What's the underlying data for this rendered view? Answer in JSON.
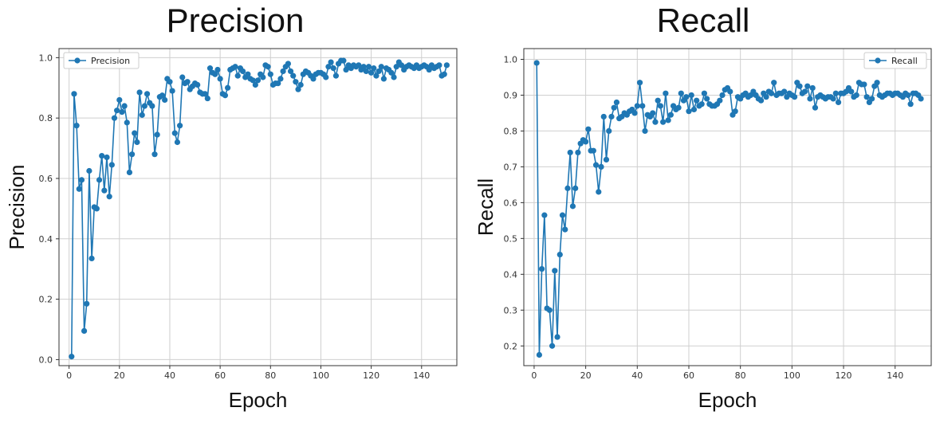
{
  "chart_data": [
    {
      "type": "line",
      "title": "Precision",
      "xlabel": "Epoch",
      "ylabel": "Precision",
      "xlim": [
        -4,
        154
      ],
      "ylim": [
        -0.02,
        1.03
      ],
      "xticks": [
        0,
        20,
        40,
        60,
        80,
        100,
        120,
        140
      ],
      "xtick_labels": [
        "0",
        "20",
        "40",
        "60",
        "80",
        "100",
        "120",
        "140"
      ],
      "yticks": [
        0.0,
        0.2,
        0.4,
        0.6,
        0.8,
        1.0
      ],
      "ytick_labels": [
        "0.0",
        "0.2",
        "0.4",
        "0.6",
        "0.8",
        "1.0"
      ],
      "grid": true,
      "legend": "top-left",
      "color": "#1f77b4",
      "series": [
        {
          "name": "Precision",
          "x": [
            1,
            2,
            3,
            4,
            5,
            6,
            7,
            8,
            9,
            10,
            11,
            12,
            13,
            14,
            15,
            16,
            17,
            18,
            19,
            20,
            21,
            22,
            23,
            24,
            25,
            26,
            27,
            28,
            29,
            30,
            31,
            32,
            33,
            34,
            35,
            36,
            37,
            38,
            39,
            40,
            41,
            42,
            43,
            44,
            45,
            46,
            47,
            48,
            49,
            50,
            51,
            52,
            53,
            54,
            55,
            56,
            57,
            58,
            59,
            60,
            61,
            62,
            63,
            64,
            65,
            66,
            67,
            68,
            69,
            70,
            71,
            72,
            73,
            74,
            75,
            76,
            77,
            78,
            79,
            80,
            81,
            82,
            83,
            84,
            85,
            86,
            87,
            88,
            89,
            90,
            91,
            92,
            93,
            94,
            95,
            96,
            97,
            98,
            99,
            100,
            101,
            102,
            103,
            104,
            105,
            106,
            107,
            108,
            109,
            110,
            111,
            112,
            113,
            114,
            115,
            116,
            117,
            118,
            119,
            120,
            121,
            122,
            123,
            124,
            125,
            126,
            127,
            128,
            129,
            130,
            131,
            132,
            133,
            134,
            135,
            136,
            137,
            138,
            139,
            140,
            141,
            142,
            143,
            144,
            145,
            146,
            147,
            148,
            149,
            150
          ],
          "y": [
            0.01,
            0.88,
            0.775,
            0.565,
            0.595,
            0.095,
            0.185,
            0.625,
            0.335,
            0.505,
            0.5,
            0.595,
            0.675,
            0.56,
            0.67,
            0.54,
            0.645,
            0.8,
            0.825,
            0.86,
            0.82,
            0.84,
            0.785,
            0.62,
            0.68,
            0.75,
            0.72,
            0.885,
            0.81,
            0.84,
            0.88,
            0.85,
            0.84,
            0.68,
            0.745,
            0.87,
            0.875,
            0.86,
            0.93,
            0.92,
            0.89,
            0.75,
            0.72,
            0.775,
            0.935,
            0.915,
            0.92,
            0.895,
            0.905,
            0.915,
            0.91,
            0.885,
            0.88,
            0.88,
            0.865,
            0.965,
            0.95,
            0.945,
            0.96,
            0.93,
            0.88,
            0.875,
            0.9,
            0.96,
            0.965,
            0.97,
            0.94,
            0.965,
            0.955,
            0.935,
            0.945,
            0.93,
            0.925,
            0.91,
            0.925,
            0.945,
            0.935,
            0.975,
            0.97,
            0.945,
            0.91,
            0.915,
            0.915,
            0.93,
            0.955,
            0.97,
            0.98,
            0.955,
            0.94,
            0.92,
            0.895,
            0.91,
            0.945,
            0.955,
            0.95,
            0.94,
            0.93,
            0.945,
            0.95,
            0.95,
            0.945,
            0.935,
            0.97,
            0.985,
            0.965,
            0.94,
            0.98,
            0.99,
            0.99,
            0.96,
            0.975,
            0.965,
            0.975,
            0.97,
            0.975,
            0.96,
            0.97,
            0.955,
            0.97,
            0.95,
            0.965,
            0.94,
            0.955,
            0.97,
            0.93,
            0.965,
            0.96,
            0.95,
            0.935,
            0.97,
            0.985,
            0.975,
            0.96,
            0.97,
            0.975,
            0.97,
            0.965,
            0.975,
            0.965,
            0.97,
            0.975,
            0.97,
            0.96,
            0.975,
            0.965,
            0.97,
            0.975,
            0.94,
            0.945,
            0.975
          ]
        }
      ]
    },
    {
      "type": "line",
      "title": "Recall",
      "xlabel": "Epoch",
      "ylabel": "Recall",
      "xlim": [
        -4,
        154
      ],
      "ylim": [
        0.145,
        1.03
      ],
      "xticks": [
        0,
        20,
        40,
        60,
        80,
        100,
        120,
        140
      ],
      "xtick_labels": [
        "0",
        "20",
        "40",
        "60",
        "80",
        "100",
        "120",
        "140"
      ],
      "yticks": [
        0.2,
        0.3,
        0.4,
        0.5,
        0.6,
        0.7,
        0.8,
        0.9,
        1.0
      ],
      "ytick_labels": [
        "0.2",
        "0.3",
        "0.4",
        "0.5",
        "0.6",
        "0.7",
        "0.8",
        "0.9",
        "1.0"
      ],
      "grid": true,
      "legend": "top-right",
      "color": "#1f77b4",
      "series": [
        {
          "name": "Recall",
          "x": [
            1,
            2,
            3,
            4,
            5,
            6,
            7,
            8,
            9,
            10,
            11,
            12,
            13,
            14,
            15,
            16,
            17,
            18,
            19,
            20,
            21,
            22,
            23,
            24,
            25,
            26,
            27,
            28,
            29,
            30,
            31,
            32,
            33,
            34,
            35,
            36,
            37,
            38,
            39,
            40,
            41,
            42,
            43,
            44,
            45,
            46,
            47,
            48,
            49,
            50,
            51,
            52,
            53,
            54,
            55,
            56,
            57,
            58,
            59,
            60,
            61,
            62,
            63,
            64,
            65,
            66,
            67,
            68,
            69,
            70,
            71,
            72,
            73,
            74,
            75,
            76,
            77,
            78,
            79,
            80,
            81,
            82,
            83,
            84,
            85,
            86,
            87,
            88,
            89,
            90,
            91,
            92,
            93,
            94,
            95,
            96,
            97,
            98,
            99,
            100,
            101,
            102,
            103,
            104,
            105,
            106,
            107,
            108,
            109,
            110,
            111,
            112,
            113,
            114,
            115,
            116,
            117,
            118,
            119,
            120,
            121,
            122,
            123,
            124,
            125,
            126,
            127,
            128,
            129,
            130,
            131,
            132,
            133,
            134,
            135,
            136,
            137,
            138,
            139,
            140,
            141,
            142,
            143,
            144,
            145,
            146,
            147,
            148,
            149,
            150
          ],
          "y": [
            0.99,
            0.175,
            0.415,
            0.565,
            0.305,
            0.3,
            0.2,
            0.41,
            0.225,
            0.455,
            0.565,
            0.525,
            0.64,
            0.74,
            0.59,
            0.64,
            0.74,
            0.765,
            0.775,
            0.77,
            0.805,
            0.745,
            0.745,
            0.705,
            0.63,
            0.7,
            0.84,
            0.72,
            0.8,
            0.84,
            0.865,
            0.88,
            0.835,
            0.84,
            0.85,
            0.845,
            0.855,
            0.86,
            0.85,
            0.87,
            0.935,
            0.87,
            0.8,
            0.845,
            0.84,
            0.85,
            0.825,
            0.885,
            0.87,
            0.825,
            0.905,
            0.83,
            0.845,
            0.87,
            0.86,
            0.865,
            0.905,
            0.885,
            0.895,
            0.855,
            0.9,
            0.86,
            0.885,
            0.87,
            0.875,
            0.905,
            0.89,
            0.875,
            0.87,
            0.87,
            0.875,
            0.885,
            0.9,
            0.915,
            0.92,
            0.91,
            0.845,
            0.855,
            0.895,
            0.89,
            0.9,
            0.905,
            0.895,
            0.9,
            0.91,
            0.9,
            0.89,
            0.885,
            0.905,
            0.895,
            0.91,
            0.905,
            0.935,
            0.9,
            0.905,
            0.905,
            0.91,
            0.895,
            0.905,
            0.9,
            0.895,
            0.935,
            0.925,
            0.905,
            0.91,
            0.925,
            0.89,
            0.92,
            0.865,
            0.895,
            0.9,
            0.895,
            0.89,
            0.895,
            0.895,
            0.89,
            0.905,
            0.88,
            0.905,
            0.905,
            0.91,
            0.92,
            0.91,
            0.895,
            0.9,
            0.935,
            0.93,
            0.93,
            0.895,
            0.88,
            0.89,
            0.925,
            0.935,
            0.9,
            0.895,
            0.9,
            0.905,
            0.905,
            0.9,
            0.905,
            0.905,
            0.9,
            0.895,
            0.905,
            0.9,
            0.875,
            0.905,
            0.905,
            0.9,
            0.89
          ]
        }
      ]
    }
  ]
}
